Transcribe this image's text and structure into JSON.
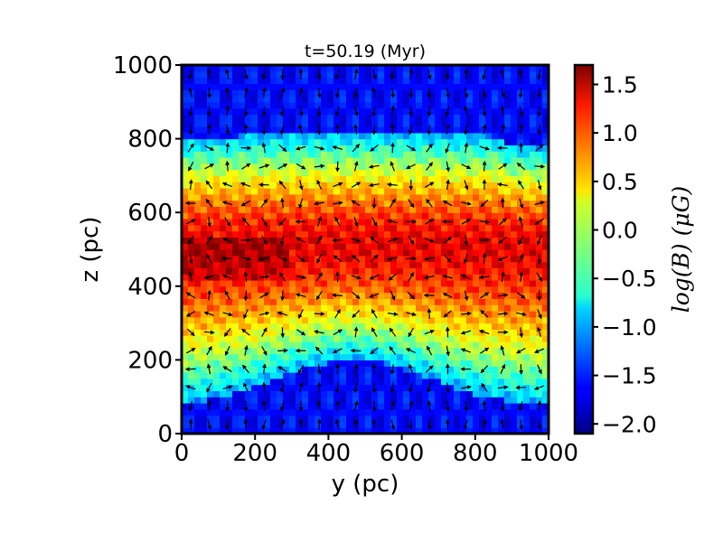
{
  "chart_data": {
    "type": "heatmap",
    "title": "t=50.19 (Myr)",
    "xlabel": "y (pc)",
    "ylabel": "z (pc)",
    "xlim": [
      0,
      1000
    ],
    "ylim": [
      0,
      1000
    ],
    "xticks": [
      "0",
      "200",
      "400",
      "600",
      "800",
      "1000"
    ],
    "yticks": [
      "0",
      "200",
      "400",
      "600",
      "800",
      "1000"
    ],
    "colorbar": {
      "label": "log(B) (μG)",
      "range": [
        -2.1,
        1.7
      ],
      "ticks": [
        "1.5",
        "1.0",
        "0.5",
        "0.0",
        "−0.5",
        "−1.0",
        "−1.5",
        "−2.0"
      ],
      "tick_values": [
        1.5,
        1.0,
        0.5,
        0.0,
        -0.5,
        -1.0,
        -1.5,
        -2.0
      ],
      "colormap": "jet"
    },
    "field": {
      "description_values": "log10 magnetic field strength across the y-z plane",
      "midplane_z": 510,
      "peak_value": 1.3,
      "background_value": -1.6
    },
    "vector_field": "black arrows showing magnetic field direction",
    "colors": {
      "background": "#ffffff",
      "axis": "#000000",
      "arrow": "#000000"
    }
  }
}
